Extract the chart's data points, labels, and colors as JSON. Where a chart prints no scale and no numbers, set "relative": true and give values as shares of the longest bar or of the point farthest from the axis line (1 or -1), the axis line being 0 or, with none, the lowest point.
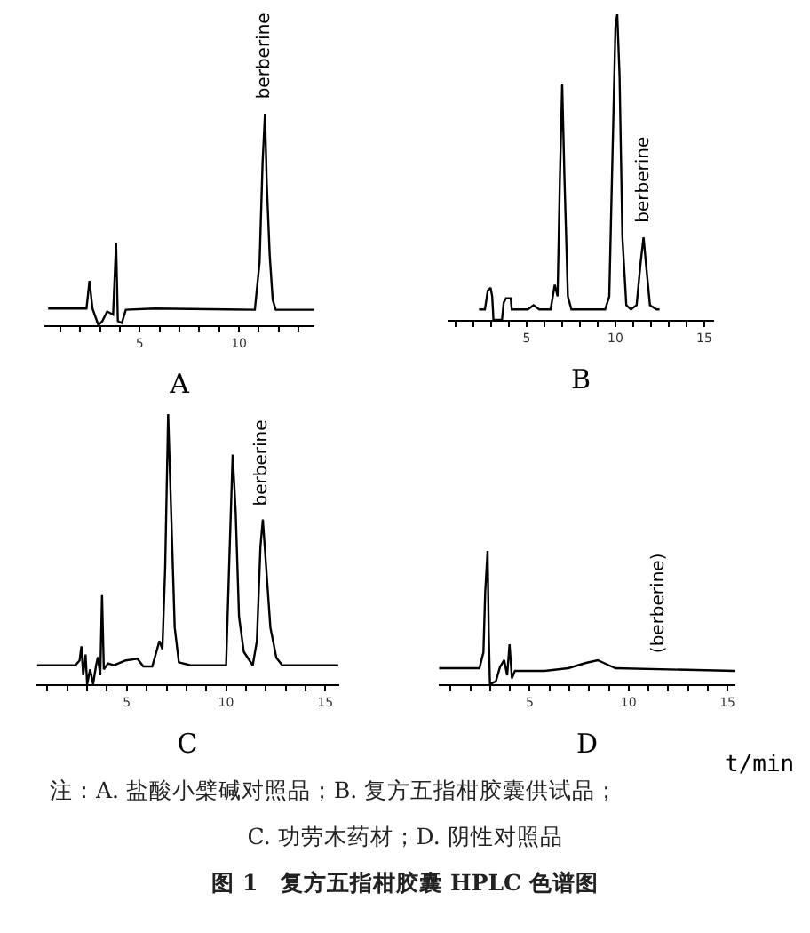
{
  "chart_data": [
    {
      "type": "line",
      "relative": true,
      "xlabel": "A",
      "xlim": [
        0.2,
        13.8
      ],
      "xticks": [
        {
          "value": 1,
          "label": null
        },
        {
          "value": 2,
          "label": null
        },
        {
          "value": 3,
          "label": null
        },
        {
          "value": 4,
          "label": null
        },
        5,
        {
          "value": 6,
          "label": null
        },
        {
          "value": 7,
          "label": null
        },
        {
          "value": 8,
          "label": null
        },
        {
          "value": 9,
          "label": null
        },
        10,
        {
          "value": 11,
          "label": null
        },
        {
          "value": 12,
          "label": null
        },
        {
          "value": 13,
          "label": null
        }
      ],
      "tick_labels": "x",
      "grid": false,
      "marker": "none",
      "line_style": "solid",
      "series": [
        {
          "color": "#000000",
          "x": [
            0.39,
            2.32,
            2.47,
            2.62,
            2.92,
            3.12,
            3.36,
            3.66,
            3.81,
            3.9,
            4.1,
            4.3,
            5.74,
            10.8,
            11.04,
            11.19,
            11.31,
            11.4,
            11.55,
            11.7,
            11.85,
            13.78
          ],
          "values": [
            0.079,
            0.079,
            0.21,
            0.079,
            0,
            0.02,
            0.065,
            0.05,
            0.39,
            0.02,
            0.01,
            0.073,
            0.079,
            0.073,
            0.3,
            0.77,
            1,
            0.67,
            0.33,
            0.12,
            0.073,
            0.073
          ]
        }
      ],
      "annotations": [
        {
          "text": "berberine",
          "x": 11.31,
          "y": 1
        }
      ]
    },
    {
      "type": "line",
      "relative": true,
      "xlabel": "B",
      "xlim": [
        0.55,
        15.55
      ],
      "xticks": [
        {
          "value": 1,
          "label": null
        },
        {
          "value": 2,
          "label": null
        },
        {
          "value": 3,
          "label": null
        },
        {
          "value": 4,
          "label": null
        },
        5,
        {
          "value": 6,
          "label": null
        },
        {
          "value": 7,
          "label": null
        },
        {
          "value": 8,
          "label": null
        },
        {
          "value": 9,
          "label": null
        },
        10,
        {
          "value": 11,
          "label": null
        },
        {
          "value": 12,
          "label": null
        },
        {
          "value": 13,
          "label": null
        },
        {
          "value": 14,
          "label": null
        },
        15
      ],
      "tick_labels": "x",
      "grid": false,
      "marker": "none",
      "line_style": "solid",
      "series": [
        {
          "color": "#000000",
          "x": [
            2.32,
            2.65,
            2.81,
            2.97,
            3.06,
            3.13,
            3.61,
            3.71,
            3.84,
            4.1,
            4.16,
            5.06,
            5.39,
            5.71,
            6.35,
            6.58,
            6.74,
            6.87,
            7.0,
            7.13,
            7.32,
            7.52,
            9.42,
            9.65,
            9.84,
            10.0,
            10.1,
            10.23,
            10.39,
            10.61,
            10.87,
            11.19,
            11.42,
            11.58,
            11.74,
            11.94,
            12.32,
            12.48
          ],
          "values": [
            0.034,
            0.034,
            0.096,
            0.105,
            0.077,
            0,
            0,
            0.057,
            0.071,
            0.071,
            0.034,
            0.034,
            0.048,
            0.034,
            0.034,
            0.115,
            0.077,
            0.46,
            0.77,
            0.46,
            0.077,
            0.034,
            0.034,
            0.077,
            0.56,
            0.96,
            1,
            0.8,
            0.27,
            0.048,
            0.034,
            0.048,
            0.19,
            0.27,
            0.17,
            0.048,
            0.034,
            0.034
          ]
        }
      ],
      "annotations": [
        {
          "text": "berberine",
          "x": 11.58,
          "y": 0.27
        }
      ]
    },
    {
      "type": "line",
      "relative": true,
      "xlabel": "C",
      "xlim": [
        0.4,
        15.7
      ],
      "xticks": [
        {
          "value": 1,
          "label": null
        },
        {
          "value": 2,
          "label": null
        },
        {
          "value": 3,
          "label": null
        },
        {
          "value": 4,
          "label": null
        },
        5,
        {
          "value": 6,
          "label": null
        },
        {
          "value": 7,
          "label": null
        },
        {
          "value": 8,
          "label": null
        },
        {
          "value": 9,
          "label": null
        },
        10,
        {
          "value": 11,
          "label": null
        },
        {
          "value": 12,
          "label": null
        },
        {
          "value": 13,
          "label": null
        },
        {
          "value": 14,
          "label": null
        },
        15
      ],
      "tick_labels": "x",
      "grid": false,
      "marker": "none",
      "line_style": "solid",
      "series": [
        {
          "color": "#000000",
          "x": [
            0.48,
            2.41,
            2.62,
            2.71,
            2.8,
            2.92,
            3.0,
            3.15,
            3.3,
            3.45,
            3.54,
            3.66,
            3.75,
            3.84,
            4.05,
            4.35,
            4.94,
            5.54,
            5.83,
            6.28,
            6.49,
            6.64,
            6.79,
            6.93,
            7.08,
            7.23,
            7.41,
            7.62,
            8.21,
            10.0,
            10.15,
            10.33,
            10.48,
            10.65,
            10.89,
            11.34,
            11.55,
            11.73,
            11.85,
            12.02,
            12.23,
            12.53,
            12.83,
            15.65
          ],
          "values": [
            0.07,
            0.07,
            0.088,
            0.14,
            0.033,
            0.11,
            0,
            0.055,
            0,
            0.07,
            0.1,
            0.033,
            0.33,
            0.055,
            0.077,
            0.07,
            0.088,
            0.094,
            0.066,
            0.066,
            0.12,
            0.16,
            0.13,
            0.43,
            1,
            0.64,
            0.21,
            0.081,
            0.07,
            0.07,
            0.43,
            0.85,
            0.64,
            0.25,
            0.12,
            0.07,
            0.16,
            0.51,
            0.61,
            0.43,
            0.21,
            0.098,
            0.07,
            0.07
          ]
        }
      ],
      "annotations": [
        {
          "text": "berberine",
          "x": 11.85,
          "y": 0.61
        }
      ]
    },
    {
      "type": "line",
      "relative": true,
      "xlabel": "D",
      "xlim": [
        0.4,
        15.4
      ],
      "xticks": [
        {
          "value": 1,
          "label": null
        },
        {
          "value": 2,
          "label": null
        },
        {
          "value": 3,
          "label": null
        },
        {
          "value": 4,
          "label": null
        },
        5,
        {
          "value": 6,
          "label": null
        },
        {
          "value": 7,
          "label": null
        },
        {
          "value": 8,
          "label": null
        },
        {
          "value": 9,
          "label": null
        },
        10,
        {
          "value": 11,
          "label": null
        },
        {
          "value": 12,
          "label": null
        },
        {
          "value": 13,
          "label": null
        },
        {
          "value": 14,
          "label": null
        },
        15
      ],
      "tick_labels": "x",
      "grid": false,
      "marker": "none",
      "line_style": "solid",
      "series": [
        {
          "color": "#000000",
          "x": [
            0.42,
            2.46,
            2.66,
            2.75,
            2.87,
            2.93,
            2.99,
            3.29,
            3.5,
            3.71,
            3.86,
            3.98,
            4.1,
            4.25,
            5.75,
            6.95,
            7.84,
            8.44,
            8.74,
            9.34,
            15.39
          ],
          "values": [
            0.12,
            0.12,
            0.24,
            0.69,
            1,
            0.38,
            0,
            0.022,
            0.13,
            0.18,
            0.067,
            0.3,
            0.044,
            0.1,
            0.1,
            0.12,
            0.16,
            0.18,
            0.16,
            0.12,
            0.1
          ]
        }
      ],
      "annotations": [
        {
          "text": "(berberine)",
          "x": 11.5,
          "y": 0.12
        },
        "t/min",
        "注：A. 盐酸小檗碱对照品；B. 复方五指柑胶囊供试品；",
        "C. 功劳木药材；D. 阴性对照品",
        "图 1　复方五指柑胶囊 HPLC 色谱图"
      ]
    }
  ]
}
